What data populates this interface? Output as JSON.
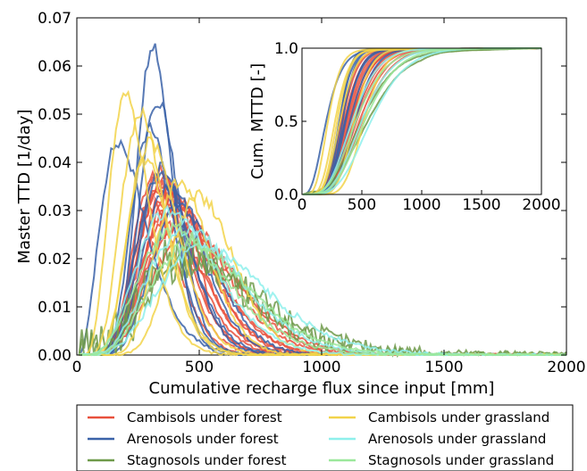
{
  "chart_data": [
    {
      "type": "line",
      "xlabel": "Cumulative recharge flux since input [mm]",
      "ylabel": "Master TTD [1/day]",
      "xlim": [
        0,
        2000
      ],
      "ylim": [
        0,
        0.07
      ],
      "xticks": [
        "0",
        "500",
        "1000",
        "1500",
        "2000"
      ],
      "yticks": [
        "0.00",
        "0.01",
        "0.02",
        "0.03",
        "0.04",
        "0.05",
        "0.06",
        "0.07"
      ],
      "grid": false,
      "legend_position": "below",
      "colors": {
        "Cambisols under forest": "#e8503c",
        "Arenosols under forest": "#3a62a8",
        "Stagnosols under forest": "#6e9a4a",
        "Cambisols under grassland": "#f2d34a",
        "Arenosols under grassland": "#8ef0ec",
        "Stagnosols under grassland": "#9be89b"
      },
      "series": [
        {
          "name": "Cambisols under forest",
          "curves": [
            {
              "peak": 340,
              "width": 105,
              "amp": 0.038
            },
            {
              "peak": 360,
              "width": 120,
              "amp": 0.036
            },
            {
              "peak": 380,
              "width": 135,
              "amp": 0.034
            },
            {
              "peak": 400,
              "width": 145,
              "amp": 0.032
            },
            {
              "peak": 420,
              "width": 160,
              "amp": 0.03
            },
            {
              "peak": 320,
              "width": 100,
              "amp": 0.037
            },
            {
              "peak": 440,
              "width": 170,
              "amp": 0.028
            },
            {
              "peak": 350,
              "width": 115,
              "amp": 0.035
            },
            {
              "peak": 390,
              "width": 130,
              "amp": 0.033
            },
            {
              "peak": 310,
              "width": 95,
              "amp": 0.031
            },
            {
              "peak": 370,
              "width": 125,
              "amp": 0.029
            },
            {
              "peak": 410,
              "width": 150,
              "amp": 0.027
            },
            {
              "peak": 330,
              "width": 110,
              "amp": 0.034
            },
            {
              "peak": 460,
              "width": 180,
              "amp": 0.025
            }
          ]
        },
        {
          "name": "Arenosols under forest",
          "curves": [
            {
              "peak": 310,
              "width": 70,
              "amp": 0.064
            },
            {
              "peak": 330,
              "width": 80,
              "amp": 0.053
            },
            {
              "peak": 300,
              "width": 85,
              "amp": 0.047
            },
            {
              "peak": 170,
              "width": 95,
              "amp": 0.044
            },
            {
              "peak": 350,
              "width": 100,
              "amp": 0.039
            },
            {
              "peak": 380,
              "width": 120,
              "amp": 0.035
            },
            {
              "peak": 420,
              "width": 130,
              "amp": 0.031
            },
            {
              "peak": 340,
              "width": 110,
              "amp": 0.037
            }
          ]
        },
        {
          "name": "Stagnosols under forest",
          "curves": [
            {
              "peak": 430,
              "width": 200,
              "amp": 0.022
            },
            {
              "peak": 480,
              "width": 230,
              "amp": 0.019
            }
          ]
        },
        {
          "name": "Cambisols under grassland",
          "curves": [
            {
              "peak": 200,
              "width": 80,
              "amp": 0.054
            },
            {
              "peak": 260,
              "width": 90,
              "amp": 0.05
            },
            {
              "peak": 300,
              "width": 100,
              "amp": 0.044
            },
            {
              "peak": 420,
              "width": 110,
              "amp": 0.036
            },
            {
              "peak": 500,
              "width": 130,
              "amp": 0.033
            },
            {
              "peak": 280,
              "width": 85,
              "amp": 0.041
            }
          ]
        },
        {
          "name": "Arenosols under grassland",
          "curves": [
            {
              "peak": 380,
              "width": 160,
              "amp": 0.03
            },
            {
              "peak": 450,
              "width": 190,
              "amp": 0.026
            },
            {
              "peak": 520,
              "width": 220,
              "amp": 0.022
            }
          ]
        },
        {
          "name": "Stagnosols under grassland",
          "curves": [
            {
              "peak": 400,
              "width": 180,
              "amp": 0.026
            },
            {
              "peak": 470,
              "width": 200,
              "amp": 0.023
            }
          ]
        }
      ]
    },
    {
      "type": "line",
      "xlabel": "",
      "ylabel": "Cum. MTTD [-]",
      "xlim": [
        0,
        2000
      ],
      "ylim": [
        0,
        1.0
      ],
      "xticks": [
        "0",
        "500",
        "1000",
        "1500",
        "2000"
      ],
      "yticks": [
        "0.0",
        "0.5",
        "1.0"
      ],
      "grid": false
    }
  ],
  "legend": {
    "items": [
      {
        "label": "Cambisols under forest",
        "color": "#e8503c"
      },
      {
        "label": "Cambisols under grassland",
        "color": "#f2d34a"
      },
      {
        "label": "Arenosols under forest",
        "color": "#3a62a8"
      },
      {
        "label": "Arenosols under grassland",
        "color": "#8ef0ec"
      },
      {
        "label": "Stagnosols under forest",
        "color": "#6e9a4a"
      },
      {
        "label": "Stagnosols under grassland",
        "color": "#9be89b"
      }
    ]
  }
}
